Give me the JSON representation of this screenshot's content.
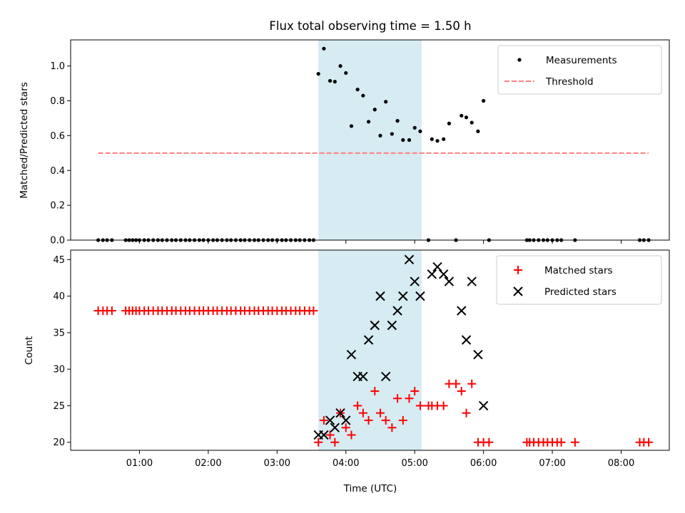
{
  "chart_data": {
    "title": "Flux total observing time = 1.50 h",
    "xlabel": "Time (UTC)",
    "x_unit": "hours UTC",
    "xlim": [
      0.0,
      8.7
    ],
    "xticks": [
      1,
      2,
      3,
      4,
      5,
      6,
      7,
      8
    ],
    "xtick_labels": [
      "01:00",
      "02:00",
      "03:00",
      "04:00",
      "05:00",
      "06:00",
      "07:00",
      "08:00"
    ],
    "shaded_span": {
      "x_start": 3.6,
      "x_end": 5.1,
      "color": "#add8e6"
    },
    "panels": [
      {
        "type": "scatter",
        "ylabel": "Matched/Predicted stars",
        "ylim": [
          0,
          1.15
        ],
        "yticks": [
          0.0,
          0.2,
          0.4,
          0.6,
          0.8,
          1.0
        ],
        "ytick_labels": [
          "0.0",
          "0.2",
          "0.4",
          "0.6",
          "0.8",
          "1.0"
        ],
        "legend_position": "top-right",
        "series": [
          {
            "name": "Measurements",
            "kind": "points",
            "color": "#000000",
            "x": [
              0.4,
              0.47,
              0.53,
              0.6,
              0.8,
              0.85,
              0.9,
              0.95,
              1.0,
              1.07,
              1.13,
              1.2,
              1.27,
              1.33,
              1.4,
              1.47,
              1.53,
              1.6,
              1.67,
              1.73,
              1.8,
              1.87,
              1.93,
              2.0,
              2.07,
              2.13,
              2.2,
              2.27,
              2.33,
              2.4,
              2.47,
              2.53,
              2.6,
              2.67,
              2.73,
              2.8,
              2.87,
              2.93,
              3.0,
              3.07,
              3.13,
              3.2,
              3.27,
              3.33,
              3.4,
              3.47,
              3.53,
              3.6,
              3.68,
              3.77,
              3.84,
              3.92,
              4.0,
              4.08,
              4.17,
              4.25,
              4.33,
              4.42,
              4.5,
              4.58,
              4.67,
              4.75,
              4.83,
              4.92,
              5.0,
              5.08,
              5.2,
              5.25,
              5.33,
              5.42,
              5.5,
              5.6,
              5.68,
              5.75,
              5.83,
              5.92,
              6.0,
              6.08,
              6.63,
              6.67,
              6.73,
              6.8,
              6.87,
              6.93,
              7.0,
              7.07,
              7.13,
              7.33,
              8.27,
              8.33,
              8.4
            ],
            "y": [
              0,
              0,
              0,
              0,
              0,
              0,
              0,
              0,
              0,
              0,
              0,
              0,
              0,
              0,
              0,
              0,
              0,
              0,
              0,
              0,
              0,
              0,
              0,
              0,
              0,
              0,
              0,
              0,
              0,
              0,
              0,
              0,
              0,
              0,
              0,
              0,
              0,
              0,
              0,
              0,
              0,
              0,
              0,
              0,
              0,
              0,
              0,
              0.955,
              1.1,
              0.915,
              0.91,
              1.0,
              0.96,
              0.655,
              0.865,
              0.83,
              0.68,
              0.75,
              0.6,
              0.795,
              0.61,
              0.685,
              0.575,
              0.575,
              0.645,
              0.625,
              0,
              0.58,
              0.57,
              0.58,
              0.67,
              0,
              0.715,
              0.705,
              0.675,
              0.625,
              0.8,
              0,
              0,
              0,
              0,
              0,
              0,
              0,
              0,
              0,
              0,
              0,
              0,
              0,
              0
            ]
          },
          {
            "name": "Threshold",
            "kind": "dashed-line",
            "color": "#ff7f7f",
            "x": [
              0.4,
              8.4
            ],
            "y": [
              0.5,
              0.5
            ]
          }
        ]
      },
      {
        "type": "scatter",
        "ylabel": "Count",
        "ylim": [
          18.9,
          46.3
        ],
        "yticks": [
          20,
          25,
          30,
          35,
          40,
          45
        ],
        "ytick_labels": [
          "20",
          "25",
          "30",
          "35",
          "40",
          "45"
        ],
        "legend_position": "top-right",
        "series": [
          {
            "name": "Matched stars",
            "kind": "plus",
            "color": "#ff0000",
            "x": [
              0.4,
              0.47,
              0.53,
              0.6,
              0.8,
              0.85,
              0.9,
              0.95,
              1.0,
              1.07,
              1.13,
              1.2,
              1.27,
              1.33,
              1.4,
              1.47,
              1.53,
              1.6,
              1.67,
              1.73,
              1.8,
              1.87,
              1.93,
              2.0,
              2.07,
              2.13,
              2.2,
              2.27,
              2.33,
              2.4,
              2.47,
              2.53,
              2.6,
              2.67,
              2.73,
              2.8,
              2.87,
              2.93,
              3.0,
              3.07,
              3.13,
              3.2,
              3.27,
              3.33,
              3.4,
              3.47,
              3.53,
              3.6,
              3.68,
              3.77,
              3.84,
              3.92,
              4.0,
              4.08,
              4.17,
              4.25,
              4.33,
              4.42,
              4.5,
              4.58,
              4.67,
              4.75,
              4.83,
              4.92,
              5.0,
              5.08,
              5.2,
              5.25,
              5.33,
              5.42,
              5.5,
              5.6,
              5.68,
              5.75,
              5.83,
              5.92,
              6.0,
              6.08,
              6.63,
              6.67,
              6.73,
              6.8,
              6.87,
              6.93,
              7.0,
              7.07,
              7.13,
              7.33,
              8.27,
              8.33,
              8.4
            ],
            "y": [
              38,
              38,
              38,
              38,
              38,
              38,
              38,
              38,
              38,
              38,
              38,
              38,
              38,
              38,
              38,
              38,
              38,
              38,
              38,
              38,
              38,
              38,
              38,
              38,
              38,
              38,
              38,
              38,
              38,
              38,
              38,
              38,
              38,
              38,
              38,
              38,
              38,
              38,
              38,
              38,
              38,
              38,
              38,
              38,
              38,
              38,
              38,
              20,
              23,
              21,
              20,
              24,
              22,
              21,
              25,
              24,
              23,
              27,
              24,
              23,
              22,
              26,
              23,
              26,
              27,
              25,
              25,
              25,
              25,
              25,
              28,
              28,
              27,
              24,
              28,
              20,
              20,
              20,
              20,
              20,
              20,
              20,
              20,
              20,
              20,
              20,
              20,
              20,
              20,
              20,
              20
            ]
          },
          {
            "name": "Predicted stars",
            "kind": "x",
            "color": "#000000",
            "x": [
              3.6,
              3.68,
              3.77,
              3.84,
              3.92,
              4.0,
              4.08,
              4.17,
              4.25,
              4.33,
              4.42,
              4.5,
              4.58,
              4.67,
              4.75,
              4.83,
              4.92,
              5.0,
              5.08,
              5.25,
              5.33,
              5.42,
              5.5,
              5.68,
              5.75,
              5.83,
              5.92,
              6.0
            ],
            "y": [
              21,
              21,
              23,
              22,
              24,
              23,
              32,
              29,
              29,
              34,
              36,
              40,
              29,
              36,
              38,
              40,
              45,
              42,
              40,
              43,
              44,
              43,
              42,
              38,
              34,
              42,
              32,
              25
            ]
          }
        ]
      }
    ]
  }
}
